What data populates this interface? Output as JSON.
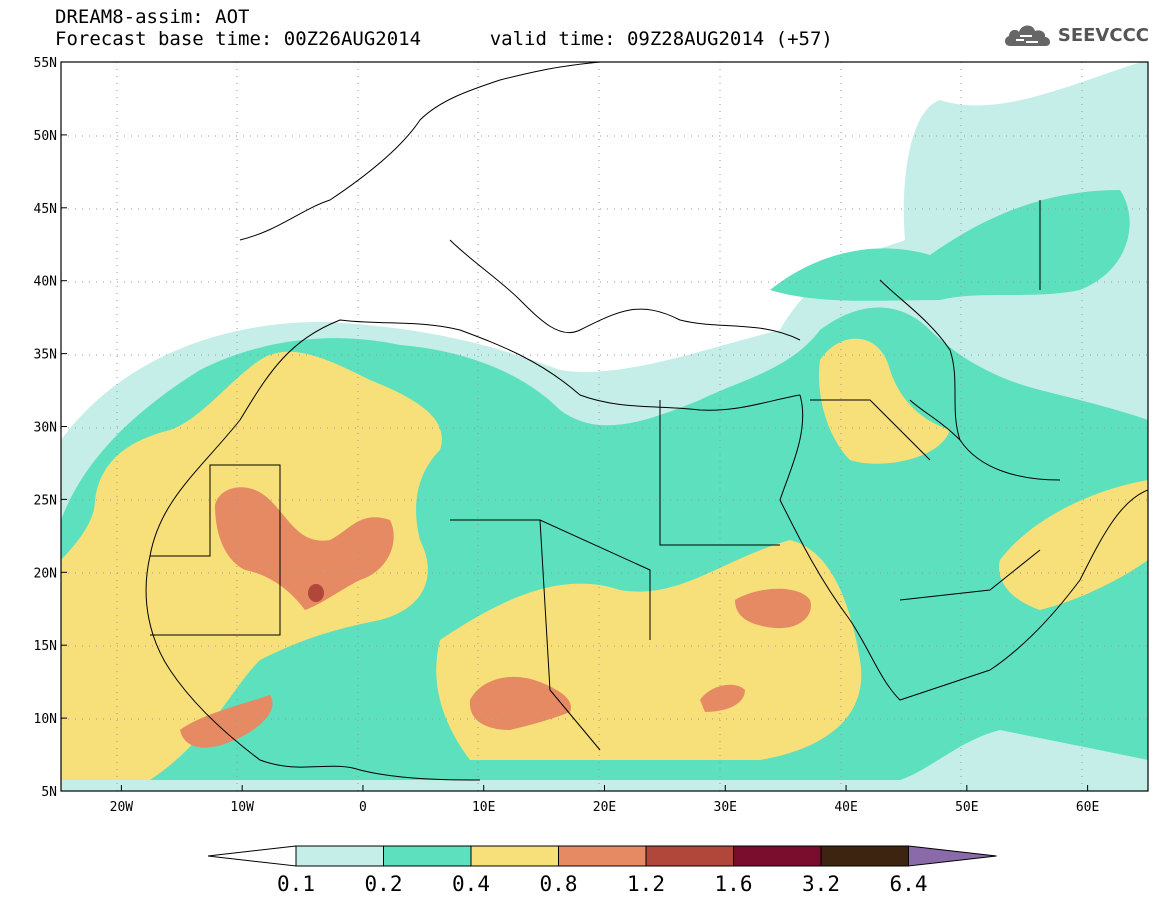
{
  "title": {
    "line1": "DREAM8-assim: AOT",
    "forecast_base": "Forecast base time: 00Z26AUG2014",
    "valid_time": "valid time: 09Z28AUG2014 (+57)"
  },
  "logo": {
    "text": "SEEVCCC",
    "icon": "cloud-icon"
  },
  "axes": {
    "lat_labels": [
      "55N",
      "50N",
      "45N",
      "40N",
      "35N",
      "30N",
      "25N",
      "20N",
      "15N",
      "10N",
      "5N"
    ],
    "lon_labels": [
      "20W",
      "10W",
      "0",
      "10E",
      "20E",
      "30E",
      "40E",
      "50E",
      "60E"
    ]
  },
  "colorbar": {
    "labels": [
      "0.1",
      "0.2",
      "0.4",
      "0.8",
      "1.2",
      "1.6",
      "3.2",
      "6.4"
    ],
    "colors": [
      "#ffffff",
      "#c4eee7",
      "#5ce0bd",
      "#f7e07a",
      "#e68a63",
      "#b0473a",
      "#7a0c2e",
      "#3d2410",
      "#8a6aa8"
    ]
  },
  "layer_colors": {
    "band1": "#c4eee7",
    "band2": "#5ce0bd",
    "band3": "#f7e07a",
    "band4": "#e68a63",
    "band5": "#b0473a"
  }
}
